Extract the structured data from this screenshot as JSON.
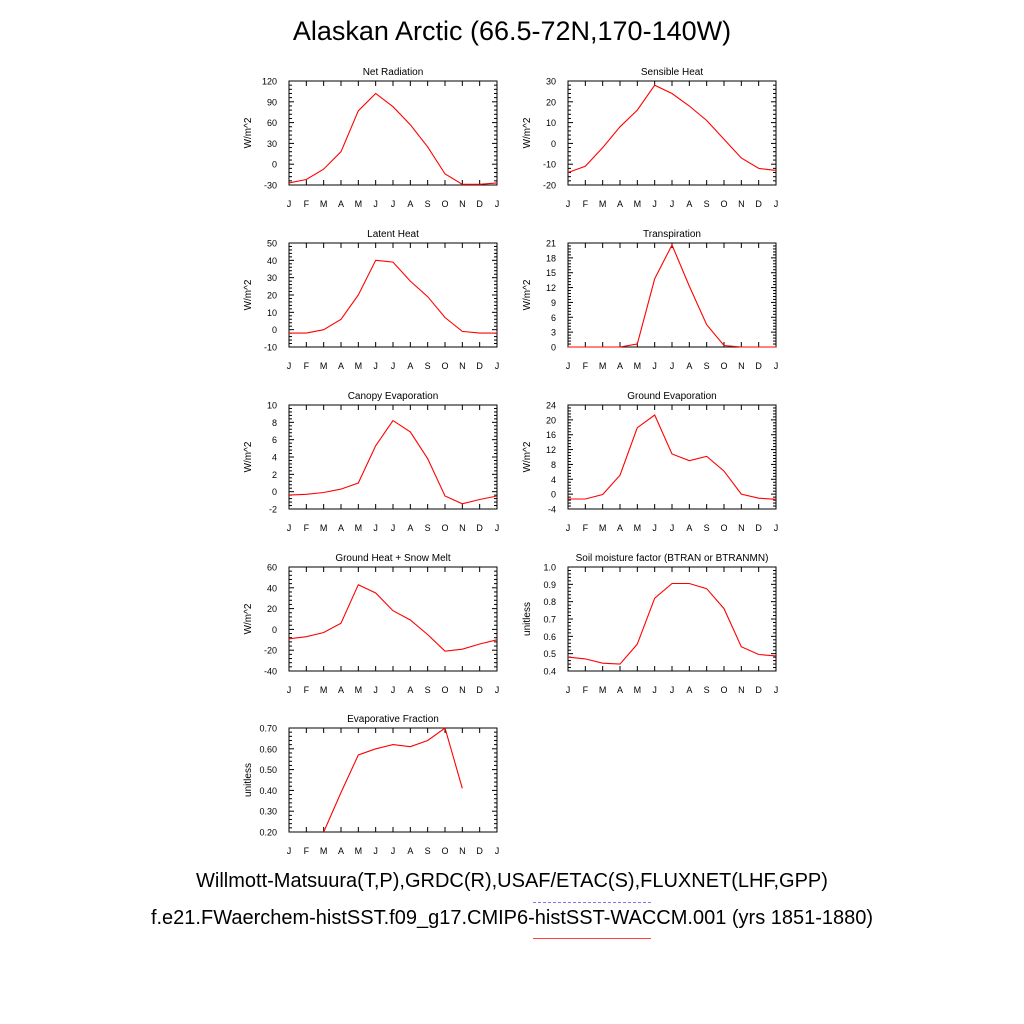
{
  "page": {
    "title": "Alaskan Arctic (66.5-72N,170-140W)",
    "legend": {
      "obs_label": "Willmott-Matsuura(T,P),GRDC(R),USAF/ETAC(S),FLUXNET(LHF,GPP)",
      "obs_color": "#7b7bf0",
      "obs_style": "dashed",
      "model_label": "f.e21.FWaerchem-histSST.f09_g17.CMIP6-histSST-WACCM.001 (yrs 1851-1880)",
      "model_color": "#ff4040",
      "model_style": "solid"
    }
  },
  "chart_data": [
    {
      "type": "line",
      "title": "Net Radiation",
      "ylabel": "W/m^2",
      "x": [
        "J",
        "F",
        "M",
        "A",
        "M",
        "J",
        "J",
        "A",
        "S",
        "O",
        "N",
        "D",
        "J"
      ],
      "ylim": [
        -30,
        120
      ],
      "yticks": [
        -30,
        0,
        30,
        60,
        90,
        120
      ],
      "ytick_labels": [
        "-30",
        "0",
        "30",
        "60",
        "90",
        "120"
      ],
      "series": [
        {
          "color": "#ff0000",
          "values": [
            -27,
            -22,
            -7,
            18,
            77,
            102,
            83,
            57,
            25,
            -14,
            -29,
            -29,
            -27
          ]
        }
      ]
    },
    {
      "type": "line",
      "title": "Sensible Heat",
      "ylabel": "W/m^2",
      "x": [
        "J",
        "F",
        "M",
        "A",
        "M",
        "J",
        "J",
        "A",
        "S",
        "O",
        "N",
        "D",
        "J"
      ],
      "ylim": [
        -20,
        30
      ],
      "yticks": [
        -20,
        -10,
        0,
        10,
        20,
        30
      ],
      "ytick_labels": [
        "-20",
        "-10",
        "0",
        "10",
        "20",
        "30"
      ],
      "series": [
        {
          "color": "#ff0000",
          "values": [
            -14,
            -11,
            -2,
            8,
            16,
            28,
            24,
            18,
            11,
            2,
            -7,
            -12,
            -13
          ]
        }
      ]
    },
    {
      "type": "line",
      "title": "Latent Heat",
      "ylabel": "W/m^2",
      "x": [
        "J",
        "F",
        "M",
        "A",
        "M",
        "J",
        "J",
        "A",
        "S",
        "O",
        "N",
        "D",
        "J"
      ],
      "ylim": [
        -10,
        50
      ],
      "yticks": [
        -10,
        0,
        10,
        20,
        30,
        40,
        50
      ],
      "ytick_labels": [
        "-10",
        "0",
        "10",
        "20",
        "30",
        "40",
        "50"
      ],
      "series": [
        {
          "color": "#ff0000",
          "values": [
            -2,
            -2,
            0,
            6,
            20,
            40,
            39,
            28,
            19,
            7,
            -1,
            -2,
            -2
          ]
        }
      ]
    },
    {
      "type": "line",
      "title": "Transpiration",
      "ylabel": "W/m^2",
      "x": [
        "J",
        "F",
        "M",
        "A",
        "M",
        "J",
        "J",
        "A",
        "S",
        "O",
        "N",
        "D",
        "J"
      ],
      "ylim": [
        0,
        21
      ],
      "yticks": [
        0,
        3,
        6,
        9,
        12,
        15,
        18,
        21
      ],
      "ytick_labels": [
        "0",
        "3",
        "6",
        "9",
        "12",
        "15",
        "18",
        "21"
      ],
      "series": [
        {
          "color": "#ff0000",
          "values": [
            0,
            0,
            0,
            0,
            0.6,
            13.8,
            20.6,
            12.3,
            4.5,
            0.3,
            0,
            0,
            0
          ]
        }
      ]
    },
    {
      "type": "line",
      "title": "Canopy Evaporation",
      "ylabel": "W/m^2",
      "x": [
        "J",
        "F",
        "M",
        "A",
        "M",
        "J",
        "J",
        "A",
        "S",
        "O",
        "N",
        "D",
        "J"
      ],
      "ylim": [
        -2,
        10
      ],
      "yticks": [
        -2,
        0,
        2,
        4,
        6,
        8,
        10
      ],
      "ytick_labels": [
        "-2",
        "0",
        "2",
        "4",
        "6",
        "8",
        "10"
      ],
      "series": [
        {
          "color": "#ff0000",
          "values": [
            -0.4,
            -0.3,
            -0.1,
            0.3,
            1.0,
            5.3,
            8.2,
            6.9,
            3.8,
            -0.5,
            -1.4,
            -0.9,
            -0.5
          ]
        }
      ]
    },
    {
      "type": "line",
      "title": "Ground Evaporation",
      "ylabel": "W/m^2",
      "x": [
        "J",
        "F",
        "M",
        "A",
        "M",
        "J",
        "J",
        "A",
        "S",
        "O",
        "N",
        "D",
        "J"
      ],
      "ylim": [
        -4,
        24
      ],
      "yticks": [
        -4,
        0,
        4,
        8,
        12,
        16,
        20,
        24
      ],
      "ytick_labels": [
        "-4",
        "0",
        "4",
        "8",
        "12",
        "16",
        "20",
        "24"
      ],
      "series": [
        {
          "color": "#ff0000",
          "values": [
            -1.3,
            -1.3,
            -0.1,
            5.1,
            17.9,
            21.3,
            10.8,
            9.0,
            10.2,
            6.2,
            0.0,
            -1.1,
            -1.4
          ]
        }
      ]
    },
    {
      "type": "line",
      "title": "Ground Heat + Snow Melt",
      "ylabel": "W/m^2",
      "x": [
        "J",
        "F",
        "M",
        "A",
        "M",
        "J",
        "J",
        "A",
        "S",
        "O",
        "N",
        "D",
        "J"
      ],
      "ylim": [
        -40,
        60
      ],
      "yticks": [
        -40,
        -20,
        0,
        20,
        40,
        60
      ],
      "ytick_labels": [
        "-40",
        "-20",
        "0",
        "20",
        "40",
        "60"
      ],
      "series": [
        {
          "color": "#ff0000",
          "values": [
            -9,
            -7,
            -3,
            6,
            43,
            35,
            18,
            9,
            -5,
            -21,
            -19,
            -14,
            -10
          ]
        }
      ]
    },
    {
      "type": "line",
      "title": "Soil moisture factor (BTRAN or BTRANMN)",
      "ylabel": "unitless",
      "x": [
        "J",
        "F",
        "M",
        "A",
        "M",
        "J",
        "J",
        "A",
        "S",
        "O",
        "N",
        "D",
        "J"
      ],
      "ylim": [
        0.4,
        1.0
      ],
      "yticks": [
        0.4,
        0.5,
        0.6,
        0.7,
        0.8,
        0.9,
        1.0
      ],
      "ytick_labels": [
        "0.4",
        "0.5",
        "0.6",
        "0.7",
        "0.8",
        "0.9",
        "1.0"
      ],
      "series": [
        {
          "color": "#ff0000",
          "values": [
            0.48,
            0.47,
            0.445,
            0.44,
            0.555,
            0.82,
            0.905,
            0.905,
            0.875,
            0.76,
            0.54,
            0.495,
            0.487
          ]
        }
      ]
    },
    {
      "type": "line",
      "title": "Evaporative Fraction",
      "ylabel": "unitless",
      "x": [
        "J",
        "F",
        "M",
        "A",
        "M",
        "J",
        "J",
        "A",
        "S",
        "O",
        "N",
        "D",
        "J"
      ],
      "ylim": [
        0.2,
        0.7
      ],
      "yticks": [
        0.2,
        0.3,
        0.4,
        0.5,
        0.6,
        0.7
      ],
      "ytick_labels": [
        "0.20",
        "0.30",
        "0.40",
        "0.50",
        "0.60",
        "0.70"
      ],
      "series": [
        {
          "color": "#ff0000",
          "values": [
            null,
            null,
            0.2,
            0.39,
            0.57,
            0.6,
            0.62,
            0.61,
            0.64,
            0.7,
            0.41,
            null,
            null
          ]
        }
      ]
    }
  ]
}
